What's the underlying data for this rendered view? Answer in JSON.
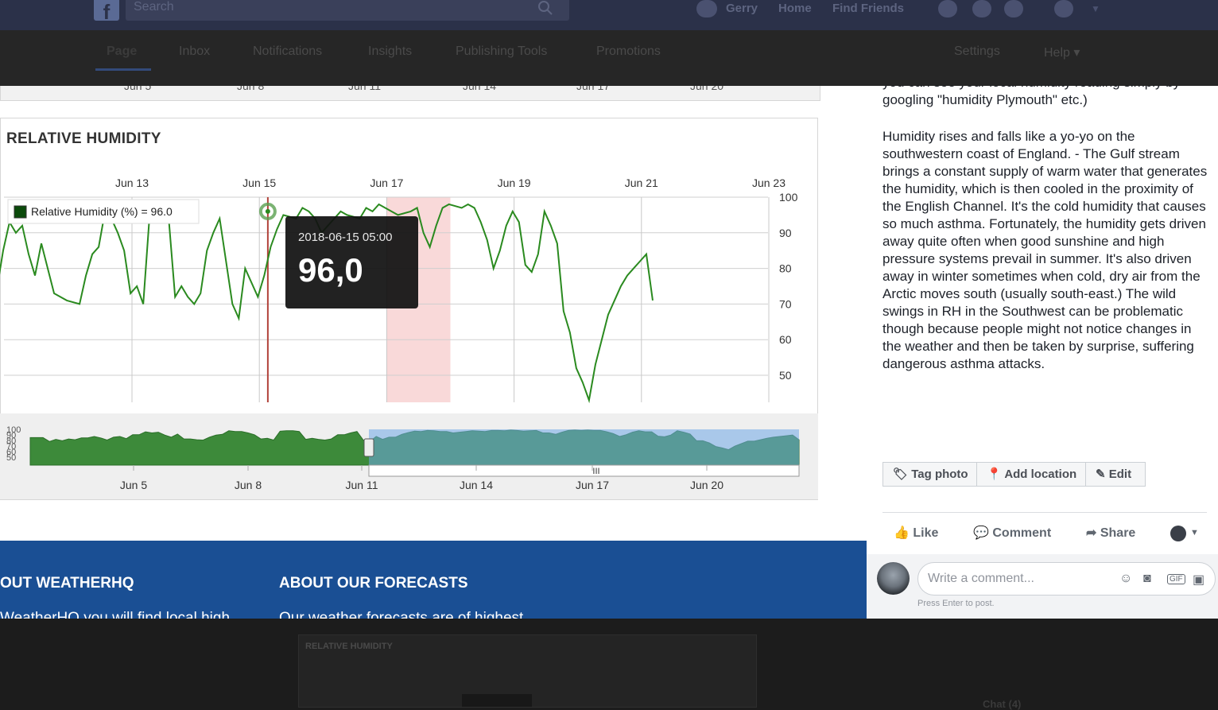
{
  "topbar": {
    "search_placeholder": "Search",
    "user": "Gerry",
    "home": "Home",
    "find_friends": "Find Friends"
  },
  "page_tabs": [
    "Page",
    "Inbox",
    "Notifications",
    "Insights",
    "Publishing Tools",
    "Promotions"
  ],
  "page_right": {
    "settings": "Settings",
    "help": "Help ▾"
  },
  "old_axis_ticks": [
    "Jun 5",
    "Jun 8",
    "Jun 11",
    "Jun 14",
    "Jun 17",
    "Jun 20"
  ],
  "chart_data": {
    "type": "line",
    "title": "RELATIVE HUMIDITY",
    "legend": "Relative Humidity (%) = 96.0",
    "x_ticks": [
      "Jun 13",
      "Jun 15",
      "Jun 17",
      "Jun 19",
      "Jun 21",
      "Jun 23"
    ],
    "y_ticks": [
      100,
      90,
      80,
      70,
      60,
      50
    ],
    "ylim": [
      45,
      100
    ],
    "highlight_range": [
      "Jun 17",
      "Jun 18"
    ],
    "tooltip": {
      "date": "2018-06-15 05:00",
      "value": "96,0"
    },
    "series": [
      {
        "name": "Relative Humidity (%)",
        "color": "#2a8a1f",
        "x": [
          11.0,
          11.3,
          11.4,
          11.5,
          11.6,
          11.7,
          11.8,
          11.9,
          12.0,
          12.1,
          12.2,
          12.3,
          12.4,
          12.5,
          12.6,
          12.7,
          12.8,
          12.9,
          13.0,
          13.1,
          13.2,
          13.4,
          13.6,
          13.8,
          13.9,
          14.0,
          14.1,
          14.2,
          14.3,
          14.4,
          14.5,
          14.6,
          14.7,
          14.8,
          14.9,
          15.0,
          15.2,
          15.3,
          15.4,
          15.5,
          15.6,
          15.7,
          15.8,
          15.9,
          16.0,
          16.2,
          16.3,
          16.4,
          16.6,
          16.7,
          16.8,
          16.9,
          17.0,
          17.2,
          17.3,
          17.4,
          17.5,
          17.6,
          17.7,
          17.8,
          17.9,
          18.0,
          18.2,
          18.3,
          18.4,
          18.5,
          18.6,
          18.8,
          19.0,
          19.1,
          19.2,
          19.3,
          19.4,
          19.5,
          19.6,
          19.8,
          19.9,
          20.0,
          20.1,
          20.2,
          20.3,
          20.4,
          20.5,
          20.6,
          20.7,
          20.8,
          20.9,
          21.0,
          21.1,
          21.2,
          21.3,
          21.4,
          21.5,
          21.6,
          21.7,
          21.8,
          21.9,
          22.0,
          22.1,
          22.2,
          22.3,
          22.4,
          22.5,
          22.6,
          22.7,
          22.8
        ],
        "values": [
          77,
          77,
          66,
          72,
          68,
          73,
          71,
          76,
          80,
          76,
          70,
          78,
          80,
          74,
          85,
          93,
          90,
          92,
          84,
          78,
          87,
          73,
          71,
          70,
          78,
          84,
          86,
          96,
          94,
          90,
          85,
          73,
          75,
          70,
          95,
          96,
          94,
          72,
          75,
          72,
          70,
          73,
          85,
          90,
          94,
          70,
          66,
          80,
          72,
          78,
          86,
          91,
          95,
          94,
          97,
          96,
          94,
          90,
          92,
          94,
          96,
          95,
          94,
          97,
          96,
          98,
          97,
          95,
          96,
          97,
          90,
          86,
          92,
          97,
          98,
          97,
          98,
          97,
          93,
          88,
          80,
          85,
          92,
          96,
          93,
          81,
          79,
          84,
          96,
          92,
          87,
          68,
          62,
          52,
          48,
          43,
          53,
          60,
          67,
          71,
          75,
          78,
          80,
          82,
          84,
          71
        ]
      }
    ]
  },
  "navigator": {
    "ticks": [
      "Jun 5",
      "Jun 8",
      "Jun 11",
      "Jun 14",
      "Jun 17",
      "Jun 20"
    ],
    "y_labels": [
      "100",
      "90",
      "80",
      "70",
      "60",
      "50"
    ]
  },
  "footer": {
    "col1_title": "OUT WEATHERHQ",
    "col1_text": "WeatherHQ you will find local high",
    "col2_title": "ABOUT OUR FORECASTS",
    "col2_text": "Our weather forecasts are of highest"
  },
  "post": {
    "cut_text": "you can see your local humidity reading simply by googling \"humidity Plymouth\" etc.)",
    "paragraph": "Humidity rises and falls like a yo-yo on the southwestern coast of England. - The Gulf stream brings a constant supply of warm water that generates the humidity, which is then cooled in the proximity of the English Channel. It's the cold humidity that causes so much asthma. Fortunately, the humidity gets driven away quite often when good sunshine and high pressure systems prevail in summer. It's also driven away in winter sometimes when cold, dry air from the Arctic moves south (usually south-east.) The wild swings in RH in the Southwest can be problematic though because people might not notice changes in the weather and then be taken by surprise, suffering dangerous asthma attacks.",
    "tag_photo": "Tag photo",
    "add_location": "Add location",
    "edit": "Edit",
    "like": "Like",
    "comment": "Comment",
    "share": "Share",
    "comment_placeholder": "Write a comment...",
    "press_enter": "Press Enter to post."
  },
  "background": {
    "dim_title": "RELATIVE HUMIDITY",
    "chat": "Chat (4)"
  }
}
